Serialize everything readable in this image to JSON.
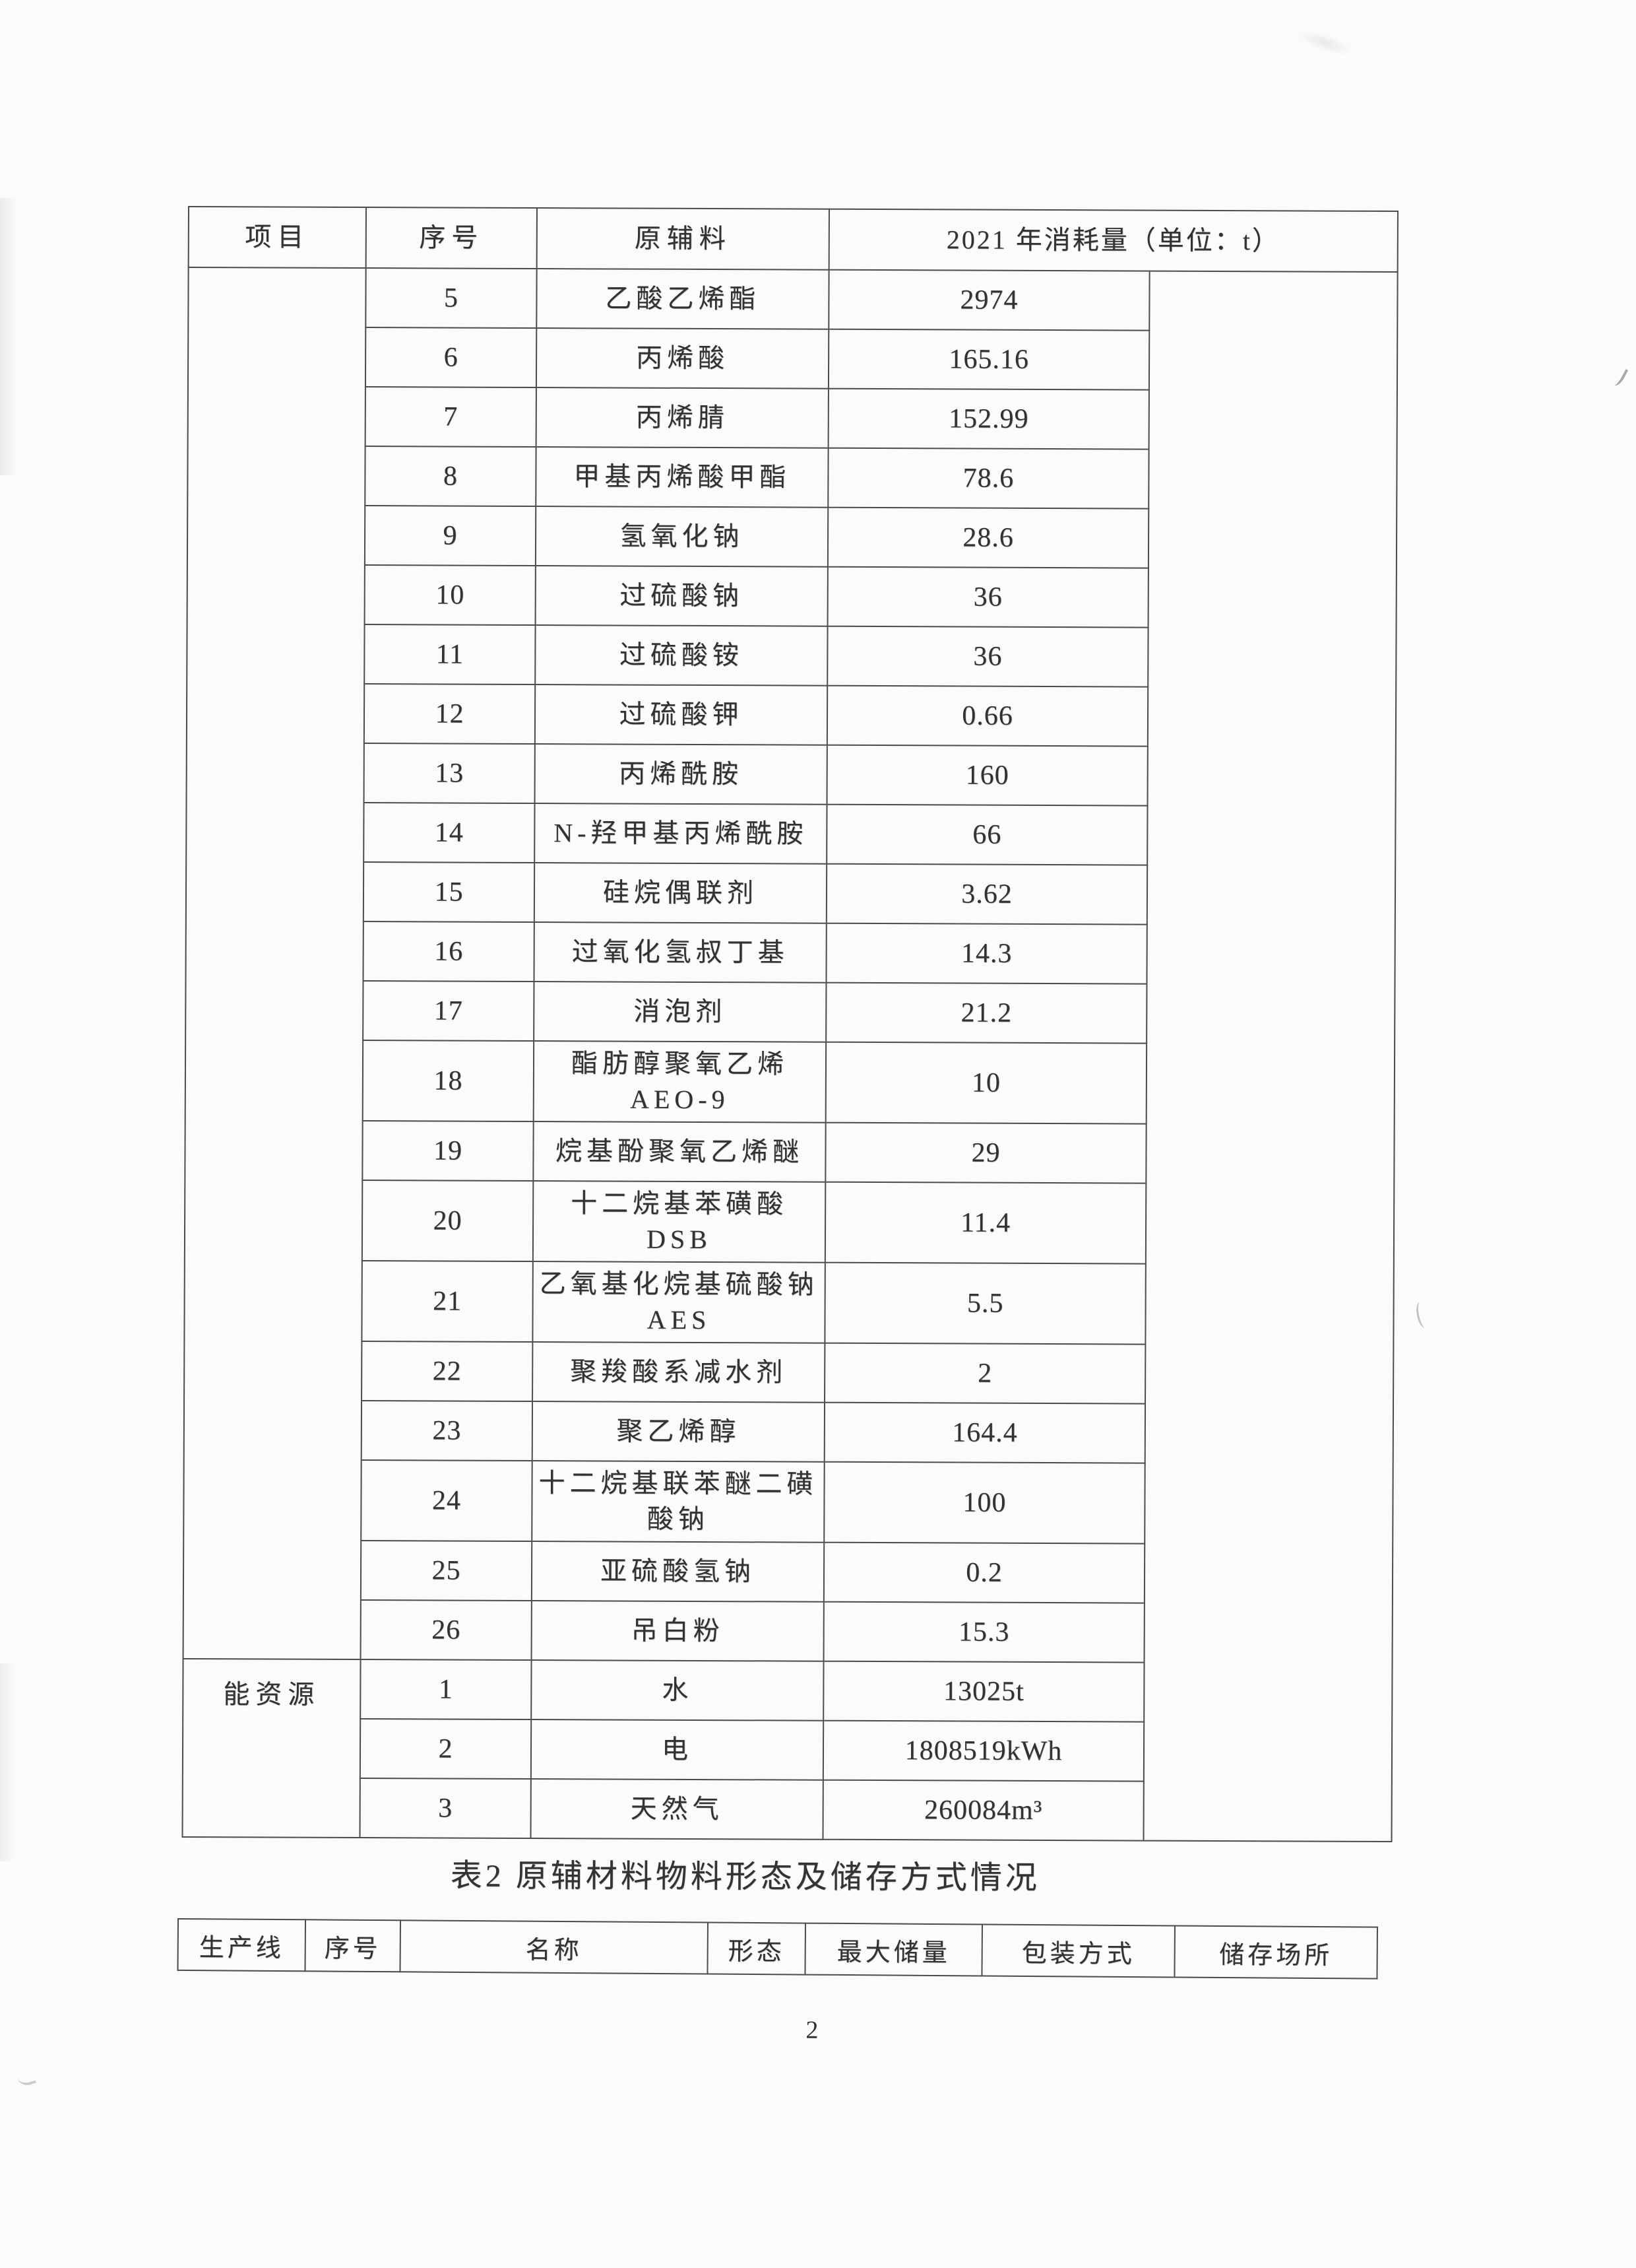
{
  "table1": {
    "header": {
      "item": "项目",
      "no": "序号",
      "material": "原辅料",
      "consumption": "2021 年消耗量（单位：t）"
    },
    "raw_material_rows": [
      {
        "no": "5",
        "name": "乙酸乙烯酯",
        "value": "2974"
      },
      {
        "no": "6",
        "name": "丙烯酸",
        "value": "165.16"
      },
      {
        "no": "7",
        "name": "丙烯腈",
        "value": "152.99"
      },
      {
        "no": "8",
        "name": "甲基丙烯酸甲酯",
        "value": "78.6"
      },
      {
        "no": "9",
        "name": "氢氧化钠",
        "value": "28.6"
      },
      {
        "no": "10",
        "name": "过硫酸钠",
        "value": "36"
      },
      {
        "no": "11",
        "name": "过硫酸铵",
        "value": "36"
      },
      {
        "no": "12",
        "name": "过硫酸钾",
        "value": "0.66"
      },
      {
        "no": "13",
        "name": "丙烯酰胺",
        "value": "160"
      },
      {
        "no": "14",
        "name": "N-羟甲基丙烯酰胺",
        "value": "66"
      },
      {
        "no": "15",
        "name": "硅烷偶联剂",
        "value": "3.62"
      },
      {
        "no": "16",
        "name": "过氧化氢叔丁基",
        "value": "14.3"
      },
      {
        "no": "17",
        "name": "消泡剂",
        "value": "21.2"
      },
      {
        "no": "18",
        "name": "酯肪醇聚氧乙烯\nAEO-9",
        "value": "10"
      },
      {
        "no": "19",
        "name": "烷基酚聚氧乙烯醚",
        "value": "29"
      },
      {
        "no": "20",
        "name": "十二烷基苯磺酸 DSB",
        "value": "11.4"
      },
      {
        "no": "21",
        "name": "乙氧基化烷基硫酸钠\nAES",
        "value": "5.5"
      },
      {
        "no": "22",
        "name": "聚羧酸系减水剂",
        "value": "2"
      },
      {
        "no": "23",
        "name": "聚乙烯醇",
        "value": "164.4"
      },
      {
        "no": "24",
        "name": "十二烷基联苯醚二磺\n酸钠",
        "value": "100"
      },
      {
        "no": "25",
        "name": "亚硫酸氢钠",
        "value": "0.2"
      },
      {
        "no": "26",
        "name": "吊白粉",
        "value": "15.3"
      }
    ],
    "energy_section": {
      "label": "能资源",
      "rows": [
        {
          "no": "1",
          "name": "水",
          "value": "13025t"
        },
        {
          "no": "2",
          "name": "电",
          "value": "1808519kWh"
        },
        {
          "no": "3",
          "name": "天然气",
          "value": "260084m³"
        }
      ]
    }
  },
  "caption": "表2 原辅材料物料形态及储存方式情况",
  "table2": {
    "headers": [
      "生产线",
      "序号",
      "名称",
      "形态",
      "最大储量",
      "包装方式",
      "储存场所"
    ]
  },
  "page_number": "2"
}
